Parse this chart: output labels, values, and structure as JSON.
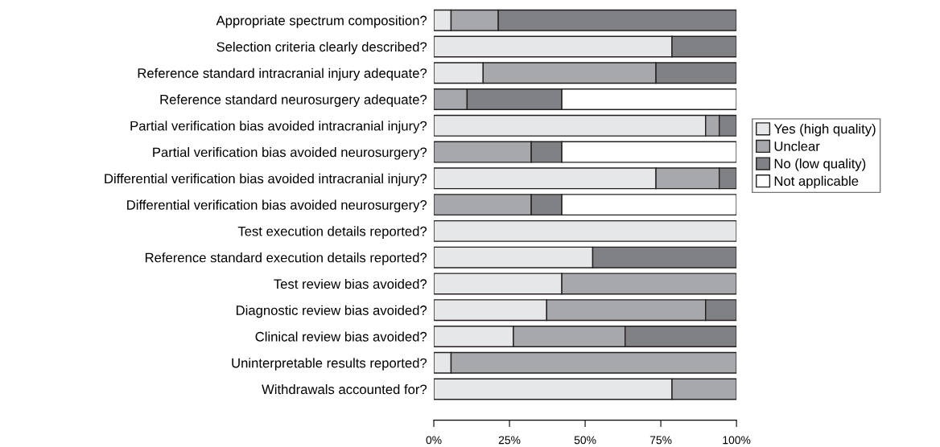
{
  "chart_data": {
    "type": "bar",
    "orientation": "horizontal",
    "stacked": true,
    "categories": [
      "Appropriate spectrum composition?",
      "Selection criteria clearly described?",
      "Reference standard intracranial injury adequate?",
      "Reference standard neurosurgery adequate?",
      "Partial verification bias avoided intracranial injury?",
      "Partial verification bias avoided neurosurgery?",
      "Differential verification bias avoided intracranial injury?",
      "Differential verification bias avoided neurosurgery?",
      "Test execution details reported?",
      "Reference standard execution details reported?",
      "Test review bias avoided?",
      "Diagnostic review bias avoided?",
      "Clinical review bias avoided?",
      "Uninterpretable results reported?",
      "Withdrawals accounted for?"
    ],
    "series": [
      {
        "name": "Yes (high quality)",
        "color": "#e6e7e8",
        "values": [
          5.7,
          78.7,
          16.3,
          0,
          89.8,
          0,
          73.4,
          0,
          100,
          52.5,
          42.3,
          37.3,
          26.3,
          5.7,
          78.7
        ]
      },
      {
        "name": "Unclear",
        "color": "#a7a8ab",
        "values": [
          15.6,
          0,
          57.1,
          11.0,
          4.5,
          32.2,
          20.9,
          32.2,
          0,
          0,
          57.7,
          52.5,
          36.9,
          94.3,
          21.3
        ]
      },
      {
        "name": "No (low quality)",
        "color": "#808184",
        "values": [
          78.7,
          21.3,
          26.6,
          31.3,
          5.7,
          10.1,
          5.7,
          10.1,
          0,
          47.5,
          0,
          10.2,
          36.8,
          0,
          0
        ]
      },
      {
        "name": "Not applicable",
        "color": "#ffffff",
        "values": [
          0,
          0,
          0,
          57.7,
          0,
          57.7,
          0,
          57.7,
          0,
          0,
          0,
          0,
          0,
          0,
          0
        ]
      }
    ],
    "xlim": [
      0,
      100
    ],
    "xticks": [
      {
        "value": 0,
        "label": "0%"
      },
      {
        "value": 25,
        "label": "25%"
      },
      {
        "value": 50,
        "label": "50%"
      },
      {
        "value": 75,
        "label": "75%"
      },
      {
        "value": 100,
        "label": "100%"
      }
    ],
    "grid": false,
    "legend": "right"
  }
}
